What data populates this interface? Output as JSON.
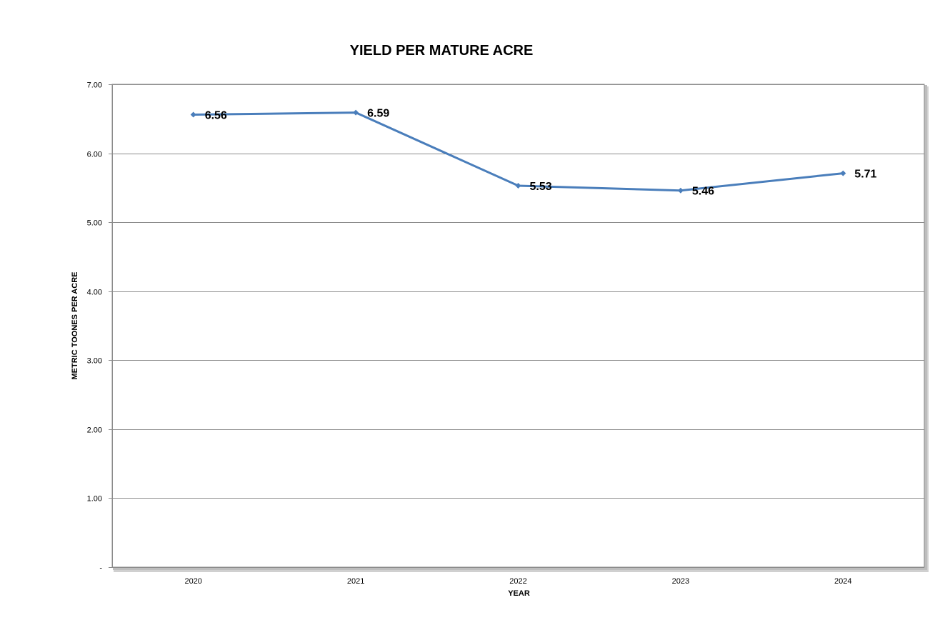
{
  "chart_data": {
    "type": "line",
    "title": "YIELD PER MATURE ACRE",
    "xlabel": "YEAR",
    "ylabel": "METRIC TOONES PER ACRE",
    "categories": [
      "2020",
      "2021",
      "2022",
      "2023",
      "2024"
    ],
    "series": [
      {
        "values": [
          6.56,
          6.59,
          5.53,
          5.46,
          5.71
        ],
        "data_labels": [
          "6.56",
          "6.59",
          "5.53",
          "5.46",
          "5.71"
        ],
        "color": "#4A7EBB"
      }
    ],
    "ylim": [
      0,
      7
    ],
    "y_ticks": [
      0,
      1,
      2,
      3,
      4,
      5,
      6,
      7
    ],
    "y_tick_labels": [
      "-",
      "1.00",
      "2.00",
      "3.00",
      "4.00",
      "5.00",
      "6.00",
      "7.00"
    ],
    "grid": true,
    "gridline_color": "#8c8c8c",
    "legend": "none"
  }
}
